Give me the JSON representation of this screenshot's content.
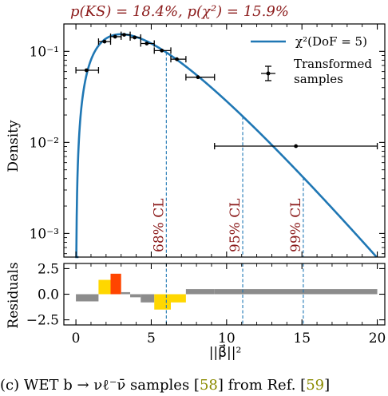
{
  "chart_data": [
    {
      "type": "line",
      "panel": "density",
      "title": "p(KS) = 18.4%,  p(χ²) = 15.9%",
      "ylabel": "Density",
      "xlim": [
        -0.8,
        20.5
      ],
      "ylim": [
        0.00055,
        0.2
      ],
      "yscale": "log",
      "yticks": [
        {
          "value": 0.1,
          "label": "10⁻¹"
        },
        {
          "value": 0.01,
          "label": "10⁻²"
        },
        {
          "value": 0.001,
          "label": "10⁻³"
        }
      ],
      "curve": {
        "name": "χ²(DoF = 5)",
        "dof": 5,
        "color": "#1f77b4"
      },
      "series": [
        {
          "name": "Transformed samples",
          "points": [
            {
              "x": 0.7,
              "xlo": 0.0,
              "xhi": 1.5,
              "y": 0.062
            },
            {
              "x": 1.9,
              "xlo": 1.5,
              "xhi": 2.3,
              "y": 0.128
            },
            {
              "x": 2.6,
              "xlo": 2.3,
              "xhi": 3.0,
              "y": 0.145
            },
            {
              "x": 3.2,
              "xlo": 3.0,
              "xhi": 3.6,
              "y": 0.152
            },
            {
              "x": 3.9,
              "xlo": 3.6,
              "xhi": 4.3,
              "y": 0.142
            },
            {
              "x": 4.7,
              "xlo": 4.3,
              "xhi": 5.2,
              "y": 0.122
            },
            {
              "x": 5.7,
              "xlo": 5.2,
              "xhi": 6.3,
              "y": 0.102
            },
            {
              "x": 6.7,
              "xlo": 6.3,
              "xhi": 7.3,
              "y": 0.082
            },
            {
              "x": 8.1,
              "xlo": 7.3,
              "xhi": 9.2,
              "y": 0.052
            },
            {
              "x": 14.6,
              "xlo": 9.2,
              "xhi": 20.0,
              "y": 0.0091
            }
          ]
        }
      ],
      "legend": {
        "position": "top-right",
        "entries": [
          "χ²(DoF = 5)",
          "Transformed samples"
        ]
      },
      "annotations": [
        {
          "x": 6.0,
          "y": 0.1,
          "label": "68% CL"
        },
        {
          "x": 11.07,
          "y": 0.02,
          "label": "95% CL"
        },
        {
          "x": 15.09,
          "y": 0.004,
          "label": "99% CL"
        }
      ]
    },
    {
      "type": "bar",
      "panel": "residuals",
      "ylabel": "Residuals",
      "xlabel": "||β⃗||²",
      "xlim": [
        -0.8,
        20.5
      ],
      "ylim": [
        -3.0,
        3.0
      ],
      "xticks": [
        0,
        5,
        10,
        15,
        20
      ],
      "yticks": [
        {
          "value": 2.5,
          "label": "2.5"
        },
        {
          "value": 0.0,
          "label": "0.0"
        },
        {
          "value": -2.5,
          "label": "−2.5"
        }
      ],
      "bars": [
        {
          "x0": 0.0,
          "x1": 1.5,
          "value": -0.7,
          "color": "#8c8c8c"
        },
        {
          "x0": 1.5,
          "x1": 2.3,
          "value": 1.4,
          "color": "#ffd700"
        },
        {
          "x0": 2.3,
          "x1": 3.0,
          "value": 2.0,
          "color": "#ff4500"
        },
        {
          "x0": 3.0,
          "x1": 3.6,
          "value": 0.2,
          "color": "#8c8c8c"
        },
        {
          "x0": 3.6,
          "x1": 4.3,
          "value": -0.3,
          "color": "#8c8c8c"
        },
        {
          "x0": 4.3,
          "x1": 5.2,
          "value": -0.8,
          "color": "#8c8c8c"
        },
        {
          "x0": 5.2,
          "x1": 6.3,
          "value": -1.5,
          "color": "#ffd700"
        },
        {
          "x0": 6.3,
          "x1": 7.3,
          "value": -0.8,
          "color": "#ffd700"
        },
        {
          "x0": 7.3,
          "x1": 9.2,
          "value": 0.5,
          "color": "#8c8c8c"
        },
        {
          "x0": 9.2,
          "x1": 20.0,
          "value": 0.5,
          "color": "#8c8c8c"
        }
      ]
    }
  ],
  "caption": {
    "prefix": "(c) WET b → νℓ⁻ν̄ samples [",
    "ref1": "58",
    "middle": "] from Ref. [",
    "ref2": "59",
    "suffix": "]"
  }
}
